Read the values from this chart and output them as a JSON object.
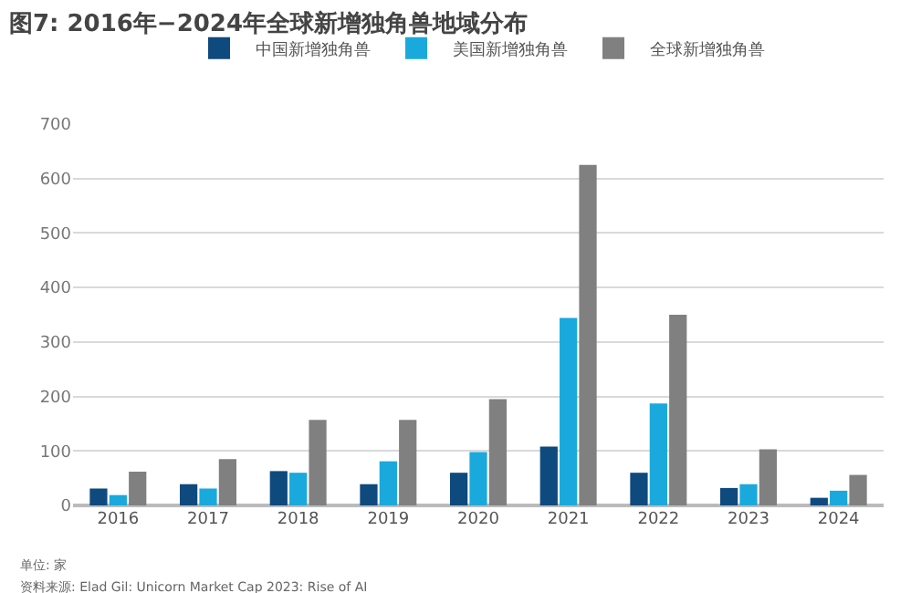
{
  "chart_data": {
    "type": "bar",
    "title": "图7: 2016年−2024年全球新增独角兽地域分布",
    "categories": [
      "2016",
      "2017",
      "2018",
      "2019",
      "2020",
      "2021",
      "2022",
      "2023",
      "2024"
    ],
    "series": [
      {
        "name": "中国新增独角兽",
        "color": "#0e4a7e",
        "values": [
          31,
          39,
          63,
          39,
          60,
          108,
          60,
          32,
          14
        ]
      },
      {
        "name": "美国新增独角兽",
        "color": "#1aa9dc",
        "values": [
          19,
          31,
          60,
          81,
          98,
          344,
          187,
          39,
          27
        ]
      },
      {
        "name": "全球新增独角兽",
        "color": "#808080",
        "values": [
          62,
          85,
          157,
          157,
          195,
          625,
          350,
          103,
          56
        ]
      }
    ],
    "ylim": [
      0,
      700
    ],
    "yticks": [
      0,
      100,
      200,
      300,
      400,
      500,
      600,
      700
    ],
    "grid": "y",
    "legend": "top",
    "annotations": [
      "单位: 家",
      "资料来源: Elad Gil: Unicorn Market Cap 2023: Rise of AI"
    ]
  }
}
